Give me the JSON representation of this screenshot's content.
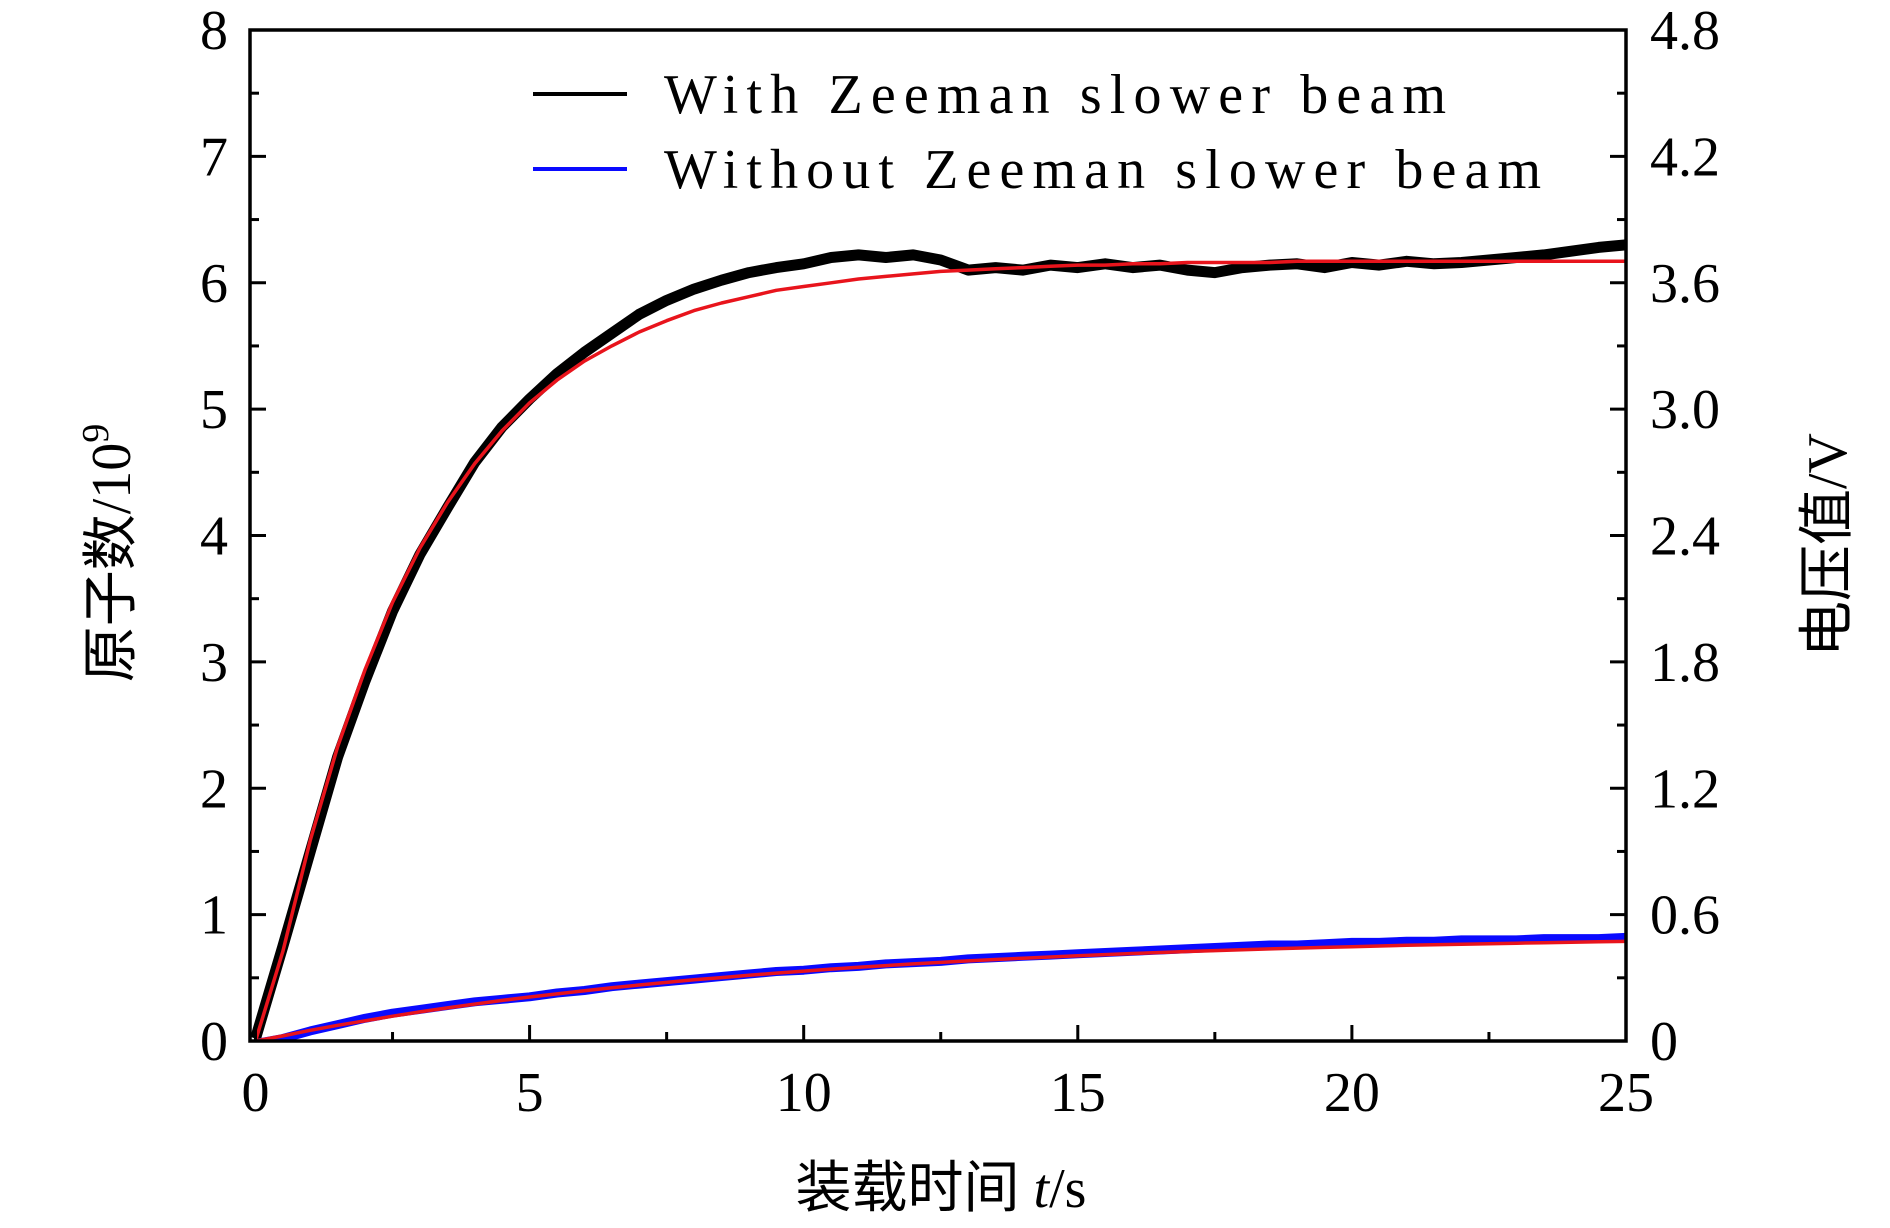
{
  "chart_data": {
    "type": "line",
    "xlabel": {
      "text": "装载时间",
      "var": "t",
      "unit": "/s"
    },
    "ylabel": {
      "text": "原子数/10",
      "sup": "9"
    },
    "y2label": "电压值/V",
    "xlim": [
      -0.1,
      25
    ],
    "ylim": [
      0,
      8
    ],
    "y2lim": [
      0,
      4.8
    ],
    "xticks": [
      "0",
      "5",
      "10",
      "15",
      "20",
      "25"
    ],
    "yticks": [
      "0",
      "1",
      "2",
      "3",
      "4",
      "5",
      "6",
      "7",
      "8"
    ],
    "y2ticks": [
      "0",
      "0.6",
      "1.2",
      "1.8",
      "2.4",
      "3.0",
      "3.6",
      "4.2",
      "4.8"
    ],
    "x_minor_step": 2.5,
    "y_minor_step": 0.5,
    "y2_minor_step": 0.3,
    "grid": false,
    "legend": "top-center",
    "fit_color": "#e8141c",
    "x": [
      0,
      0.5,
      1,
      1.5,
      2,
      2.5,
      3,
      3.5,
      4,
      4.5,
      5,
      5.5,
      6,
      6.5,
      7,
      7.5,
      8,
      8.5,
      9,
      9.5,
      10,
      10.5,
      11,
      11.5,
      12,
      12.5,
      13,
      13.5,
      14,
      14.5,
      15,
      15.5,
      16,
      16.5,
      17,
      17.5,
      18,
      18.5,
      19,
      19.5,
      20,
      20.5,
      21,
      21.5,
      22,
      22.5,
      23,
      23.5,
      24,
      24.5,
      25
    ],
    "series": [
      {
        "name": "With Zeeman slower beam",
        "color": "#000000",
        "values": [
          0.02,
          0.75,
          1.5,
          2.25,
          2.85,
          3.4,
          3.85,
          4.22,
          4.58,
          4.86,
          5.08,
          5.28,
          5.45,
          5.6,
          5.75,
          5.86,
          5.95,
          6.02,
          6.08,
          6.12,
          6.15,
          6.2,
          6.22,
          6.2,
          6.22,
          6.18,
          6.1,
          6.12,
          6.1,
          6.14,
          6.12,
          6.15,
          6.12,
          6.14,
          6.1,
          6.08,
          6.12,
          6.14,
          6.15,
          6.12,
          6.16,
          6.14,
          6.17,
          6.15,
          6.16,
          6.18,
          6.2,
          6.22,
          6.25,
          6.28,
          6.3
        ],
        "fit": [
          0,
          0.71,
          1.59,
          2.33,
          2.94,
          3.47,
          3.9,
          4.26,
          4.57,
          4.83,
          5.05,
          5.23,
          5.38,
          5.5,
          5.61,
          5.7,
          5.78,
          5.84,
          5.89,
          5.94,
          5.97,
          6.0,
          6.03,
          6.05,
          6.07,
          6.09,
          6.1,
          6.11,
          6.12,
          6.13,
          6.14,
          6.14,
          6.15,
          6.15,
          6.16,
          6.16,
          6.16,
          6.16,
          6.17,
          6.17,
          6.17,
          6.17,
          6.17,
          6.17,
          6.17,
          6.17,
          6.17,
          6.17,
          6.17,
          6.17,
          6.17
        ]
      },
      {
        "name": "Without Zeeman slower beam",
        "color": "#0a0aff",
        "values": [
          -0.02,
          0.02,
          0.08,
          0.13,
          0.18,
          0.22,
          0.25,
          0.28,
          0.31,
          0.33,
          0.35,
          0.38,
          0.4,
          0.43,
          0.45,
          0.47,
          0.49,
          0.51,
          0.53,
          0.55,
          0.56,
          0.58,
          0.59,
          0.61,
          0.62,
          0.63,
          0.65,
          0.66,
          0.67,
          0.68,
          0.69,
          0.7,
          0.71,
          0.72,
          0.73,
          0.74,
          0.75,
          0.76,
          0.76,
          0.77,
          0.78,
          0.78,
          0.79,
          0.79,
          0.8,
          0.8,
          0.8,
          0.81,
          0.81,
          0.81,
          0.82
        ],
        "fit": [
          0,
          0.04,
          0.085,
          0.124,
          0.16,
          0.196,
          0.23,
          0.262,
          0.292,
          0.321,
          0.348,
          0.373,
          0.398,
          0.421,
          0.443,
          0.464,
          0.484,
          0.502,
          0.52,
          0.537,
          0.553,
          0.569,
          0.583,
          0.597,
          0.61,
          0.622,
          0.634,
          0.645,
          0.655,
          0.665,
          0.675,
          0.684,
          0.692,
          0.7,
          0.708,
          0.715,
          0.722,
          0.729,
          0.735,
          0.741,
          0.746,
          0.752,
          0.757,
          0.761,
          0.766,
          0.77,
          0.774,
          0.778,
          0.782,
          0.785,
          0.788
        ]
      }
    ]
  }
}
